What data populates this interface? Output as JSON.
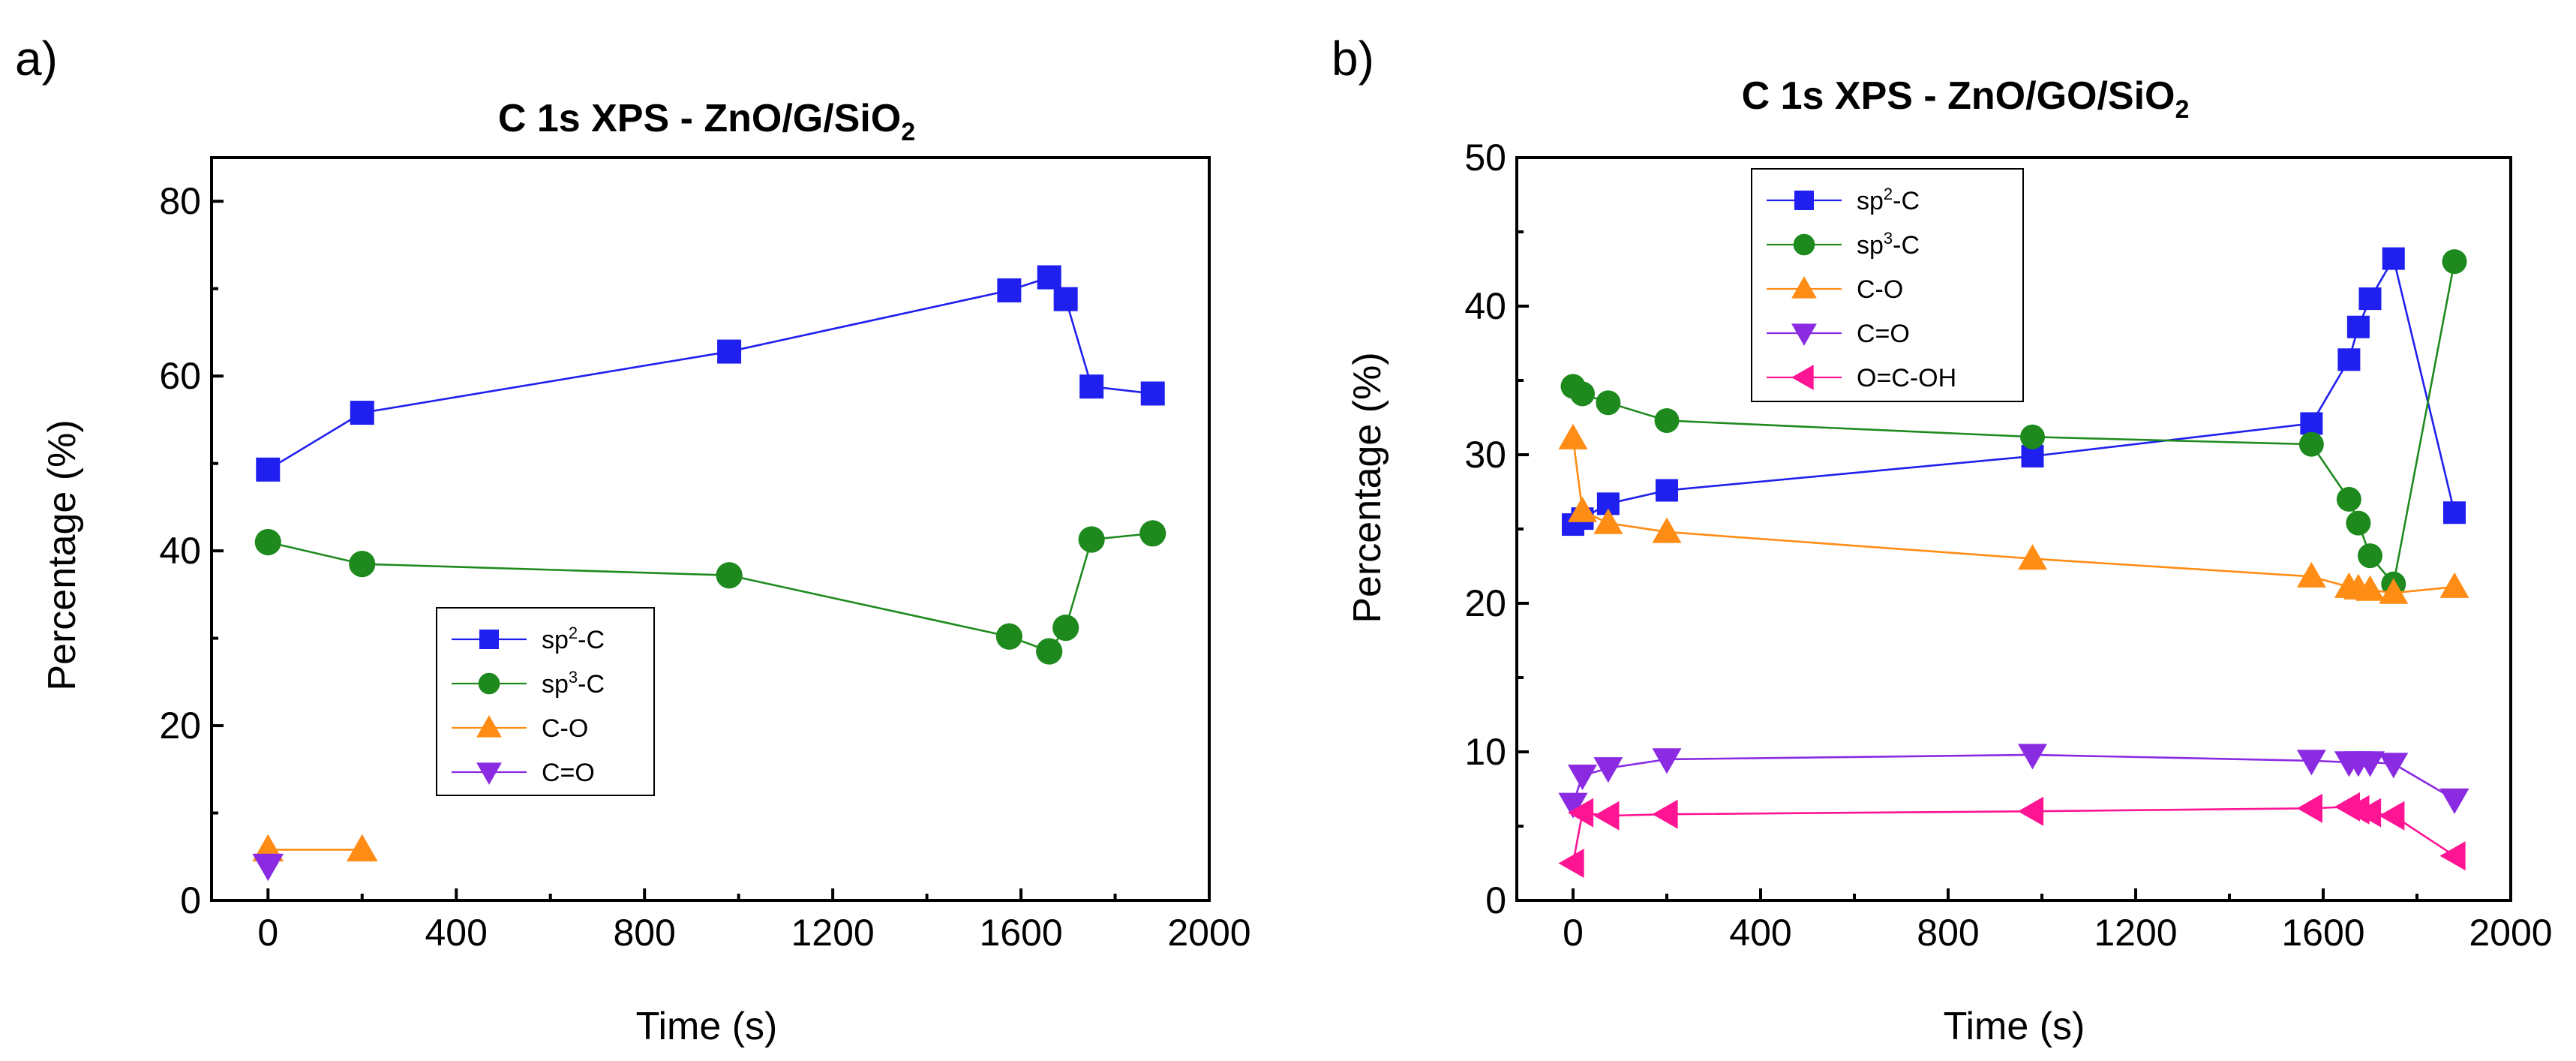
{
  "chart_data": [
    {
      "type": "line",
      "panel_label": "a)",
      "title": "C 1s XPS - ZnO/G/SiO",
      "title_subscript": "2",
      "xlabel": "Time (s)",
      "ylabel": "Percentage (%)",
      "xlim": [
        -120,
        2000
      ],
      "ylim": [
        0,
        85
      ],
      "xticks": [
        0,
        400,
        800,
        1200,
        1600,
        2000
      ],
      "yticks": [
        0,
        20,
        40,
        60,
        80
      ],
      "xtick_labels": [
        "0",
        "400",
        "800",
        "1200",
        "1600",
        "2000"
      ],
      "ytick_labels": [
        "0",
        "20",
        "40",
        "60",
        "80"
      ],
      "legend_position": "lower-center",
      "series": [
        {
          "name": "sp2-C",
          "label_main": "sp",
          "label_sup": "2",
          "label_tail": "-C",
          "marker": "square",
          "color": "#1f1ff0",
          "x": [
            0,
            200,
            980,
            1575,
            1660,
            1695,
            1750,
            1880
          ],
          "y": [
            49.3,
            55.8,
            62.8,
            69.8,
            71.3,
            68.8,
            58.8,
            58.0
          ]
        },
        {
          "name": "sp3-C",
          "label_main": "sp",
          "label_sup": "3",
          "label_tail": "-C",
          "marker": "circle",
          "color": "#1e8a1e",
          "x": [
            0,
            200,
            980,
            1575,
            1660,
            1695,
            1750,
            1880
          ],
          "y": [
            41.0,
            38.5,
            37.2,
            30.2,
            28.5,
            31.2,
            41.3,
            42.0
          ]
        },
        {
          "name": "C-O",
          "label_main": "C-O",
          "label_sup": "",
          "label_tail": "",
          "marker": "triangle-up",
          "color": "#ff8c14",
          "x": [
            0,
            200
          ],
          "y": [
            5.8,
            5.8
          ]
        },
        {
          "name": "C=O",
          "label_main": "C=O",
          "label_sup": "",
          "label_tail": "",
          "marker": "triangle-down",
          "color": "#8a2be2",
          "x": [
            0
          ],
          "y": [
            4.0
          ]
        }
      ]
    },
    {
      "type": "line",
      "panel_label": "b)",
      "title": "C 1s XPS - ZnO/GO/SiO",
      "title_subscript": "2",
      "xlabel": "Time (s)",
      "ylabel": "Percentage (%)",
      "xlim": [
        -120,
        2000
      ],
      "ylim": [
        0,
        50
      ],
      "xticks": [
        0,
        400,
        800,
        1200,
        1600,
        2000
      ],
      "yticks": [
        0,
        10,
        20,
        30,
        40,
        50
      ],
      "xtick_labels": [
        "0",
        "400",
        "800",
        "1200",
        "1600",
        "2000"
      ],
      "ytick_labels": [
        "0",
        "10",
        "20",
        "30",
        "40",
        "50"
      ],
      "legend_position": "top-left",
      "series": [
        {
          "name": "sp2-C",
          "label_main": "sp",
          "label_sup": "2",
          "label_tail": "-C",
          "marker": "square",
          "color": "#1f1ff0",
          "x": [
            0,
            20,
            75,
            200,
            980,
            1575,
            1655,
            1675,
            1700,
            1750,
            1880
          ],
          "y": [
            25.3,
            25.7,
            26.7,
            27.6,
            29.9,
            32.1,
            36.4,
            38.6,
            40.5,
            43.2,
            26.1
          ]
        },
        {
          "name": "sp3-C",
          "label_main": "sp",
          "label_sup": "3",
          "label_tail": "-C",
          "marker": "circle",
          "color": "#1e8a1e",
          "x": [
            0,
            20,
            75,
            200,
            980,
            1575,
            1655,
            1675,
            1700,
            1750,
            1880
          ],
          "y": [
            34.6,
            34.1,
            33.5,
            32.3,
            31.2,
            30.7,
            27.0,
            25.4,
            23.2,
            21.3,
            43.0
          ]
        },
        {
          "name": "C-O",
          "label_main": "C-O",
          "label_sup": "",
          "label_tail": "",
          "marker": "triangle-up",
          "color": "#ff8c14",
          "x": [
            0,
            20,
            75,
            200,
            980,
            1575,
            1655,
            1675,
            1700,
            1750,
            1880
          ],
          "y": [
            31.1,
            26.2,
            25.4,
            24.8,
            23.0,
            21.8,
            21.1,
            21.0,
            20.9,
            20.7,
            21.1
          ]
        },
        {
          "name": "C=O",
          "label_main": "C=O",
          "label_sup": "",
          "label_tail": "",
          "marker": "triangle-down",
          "color": "#8a2be2",
          "x": [
            0,
            20,
            75,
            200,
            980,
            1575,
            1655,
            1675,
            1700,
            1750,
            1880
          ],
          "y": [
            6.5,
            8.4,
            8.9,
            9.5,
            9.8,
            9.4,
            9.3,
            9.3,
            9.3,
            9.2,
            6.8
          ]
        },
        {
          "name": "O=C-OH",
          "label_main": "O=C-OH",
          "label_sup": "",
          "label_tail": "",
          "marker": "triangle-left",
          "color": "#ff1493",
          "x": [
            0,
            20,
            75,
            200,
            980,
            1575,
            1655,
            1675,
            1700,
            1750,
            1880
          ],
          "y": [
            2.5,
            5.9,
            5.7,
            5.8,
            6.0,
            6.2,
            6.3,
            6.1,
            5.9,
            5.7,
            3.0
          ]
        }
      ]
    }
  ]
}
